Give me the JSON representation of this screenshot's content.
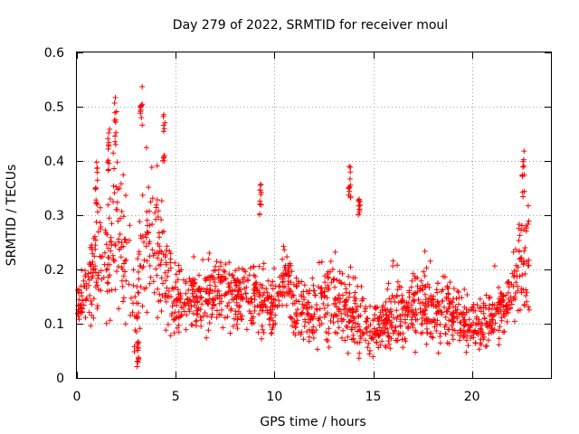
{
  "chart_data": {
    "type": "scatter",
    "title": "Day 279 of 2022, SRMTID for receiver moul",
    "xlabel": "GPS time / hours",
    "ylabel": "SRMTID / TECUs",
    "xlim": [
      0,
      24
    ],
    "ylim": [
      0,
      0.6
    ],
    "xticks": [
      0,
      5,
      10,
      15,
      20
    ],
    "xtick_labels": [
      "0",
      "5",
      "10",
      "15",
      "20"
    ],
    "yticks": [
      0,
      0.1,
      0.2,
      0.3,
      0.4,
      0.5,
      0.6
    ],
    "ytick_labels": [
      "0",
      "0.1",
      "0.2",
      "0.3",
      "0.4",
      "0.5",
      "0.6"
    ],
    "grid": true,
    "marker": "+",
    "color": "#ff0000",
    "profile": [
      {
        "t": 0.0,
        "c": 0.13,
        "s": 0.03
      },
      {
        "t": 0.5,
        "c": 0.17,
        "s": 0.04
      },
      {
        "t": 1.0,
        "c": 0.22,
        "s": 0.07
      },
      {
        "t": 1.5,
        "c": 0.24,
        "s": 0.09
      },
      {
        "t": 2.0,
        "c": 0.28,
        "s": 0.11
      },
      {
        "t": 2.5,
        "c": 0.2,
        "s": 0.08
      },
      {
        "t": 3.0,
        "c": 0.12,
        "s": 0.06
      },
      {
        "t": 3.5,
        "c": 0.25,
        "s": 0.09
      },
      {
        "t": 4.0,
        "c": 0.26,
        "s": 0.09
      },
      {
        "t": 4.5,
        "c": 0.18,
        "s": 0.06
      },
      {
        "t": 5.0,
        "c": 0.14,
        "s": 0.04
      },
      {
        "t": 6.0,
        "c": 0.14,
        "s": 0.035
      },
      {
        "t": 7.0,
        "c": 0.16,
        "s": 0.05
      },
      {
        "t": 8.0,
        "c": 0.15,
        "s": 0.04
      },
      {
        "t": 9.0,
        "c": 0.16,
        "s": 0.05
      },
      {
        "t": 10.0,
        "c": 0.13,
        "s": 0.04
      },
      {
        "t": 10.6,
        "c": 0.2,
        "s": 0.05
      },
      {
        "t": 11.0,
        "c": 0.12,
        "s": 0.04
      },
      {
        "t": 12.0,
        "c": 0.13,
        "s": 0.045
      },
      {
        "t": 13.0,
        "c": 0.14,
        "s": 0.05
      },
      {
        "t": 14.0,
        "c": 0.12,
        "s": 0.05
      },
      {
        "t": 15.0,
        "c": 0.09,
        "s": 0.03
      },
      {
        "t": 16.0,
        "c": 0.11,
        "s": 0.04
      },
      {
        "t": 17.0,
        "c": 0.13,
        "s": 0.045
      },
      {
        "t": 18.0,
        "c": 0.13,
        "s": 0.045
      },
      {
        "t": 19.0,
        "c": 0.12,
        "s": 0.04
      },
      {
        "t": 20.0,
        "c": 0.09,
        "s": 0.03
      },
      {
        "t": 21.0,
        "c": 0.11,
        "s": 0.035
      },
      {
        "t": 22.0,
        "c": 0.15,
        "s": 0.04
      },
      {
        "t": 22.6,
        "c": 0.24,
        "s": 0.08
      },
      {
        "t": 22.9,
        "c": 0.2,
        "s": 0.06
      }
    ],
    "spikes": [
      {
        "t": 1.0,
        "lo": 0.3,
        "hi": 0.4
      },
      {
        "t": 1.6,
        "lo": 0.38,
        "hi": 0.46
      },
      {
        "t": 1.95,
        "lo": 0.42,
        "hi": 0.52
      },
      {
        "t": 3.25,
        "lo": 0.45,
        "hi": 0.54
      },
      {
        "t": 4.4,
        "lo": 0.4,
        "hi": 0.5
      },
      {
        "t": 3.1,
        "lo": 0.02,
        "hi": 0.07
      },
      {
        "t": 9.3,
        "lo": 0.3,
        "hi": 0.36
      },
      {
        "t": 13.8,
        "lo": 0.33,
        "hi": 0.39
      },
      {
        "t": 14.3,
        "lo": 0.3,
        "hi": 0.33
      },
      {
        "t": 22.6,
        "lo": 0.33,
        "hi": 0.42
      }
    ],
    "point_count": 1700,
    "seed": 279
  }
}
